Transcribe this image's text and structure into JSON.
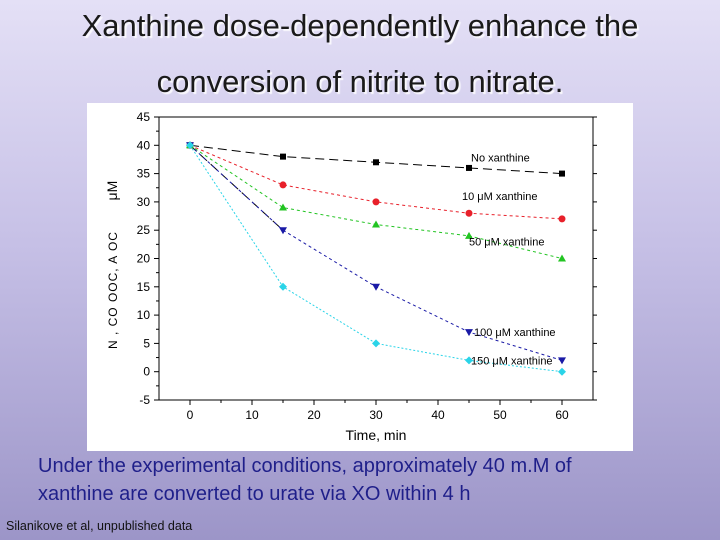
{
  "slide": {
    "title_line1": "Xanthine dose-dependently enhance  the",
    "title_line2": "conversion of nitrite to nitrate.",
    "caption_line1": "Under the experimental conditions, approximately 40 m.M of",
    "caption_line2": "xanthine are converted to urate via XO within 4 h",
    "credit": "Silanikove et al, unpublished data"
  },
  "chart_data": {
    "type": "line",
    "title": "",
    "xlabel": "Time, min",
    "ylabel": "μM",
    "ylabel_fragment": "N ,  CO  OOC,  A  OC",
    "xlim": [
      -5,
      65
    ],
    "ylim": [
      -5,
      45
    ],
    "xticks": [
      0,
      10,
      20,
      30,
      40,
      50,
      60
    ],
    "yticks": [
      -5,
      0,
      5,
      10,
      15,
      20,
      25,
      30,
      35,
      40,
      45
    ],
    "grid": false,
    "legend": "inline labels",
    "series": [
      {
        "name": "No xanthine",
        "color": "#000000",
        "marker": "square",
        "dash": "9,5",
        "x": [
          0,
          15,
          30,
          45,
          60
        ],
        "y": [
          40,
          38,
          37,
          36,
          35
        ]
      },
      {
        "name": "10 μM xanthine",
        "color": "#e8202a",
        "marker": "circle",
        "dash": "3,3",
        "x": [
          0,
          15,
          30,
          45,
          60
        ],
        "y": [
          40,
          33,
          30,
          28,
          27
        ]
      },
      {
        "name": "50 μM xanthine",
        "color": "#22c422",
        "marker": "triangle-up",
        "dash": "3,3",
        "x": [
          0,
          15,
          30,
          45,
          60
        ],
        "y": [
          40,
          29,
          26,
          24,
          20
        ]
      },
      {
        "name": "100 μM xanthine",
        "color": "#1a1aa6",
        "marker": "triangle-down",
        "dash": "3,3",
        "x": [
          0,
          15,
          30,
          45,
          60
        ],
        "y": [
          40,
          25,
          15,
          7,
          2
        ]
      },
      {
        "name": "150 μM xanthine",
        "color": "#2ad4e8",
        "marker": "diamond",
        "dash": "2,2",
        "x": [
          0,
          15,
          30,
          45,
          60
        ],
        "y": [
          40,
          15,
          5,
          2,
          0
        ]
      }
    ],
    "extra_line": {
      "color": "#000000",
      "dash": "9,5",
      "x": [
        0,
        15
      ],
      "y": [
        40,
        25
      ]
    }
  }
}
